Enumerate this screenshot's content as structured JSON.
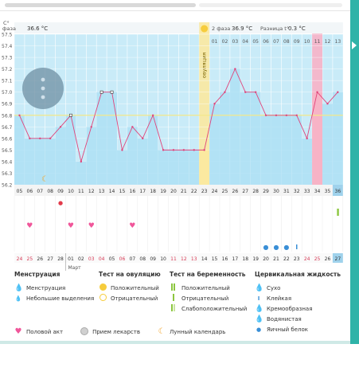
{
  "chart_data": {
    "type": "line",
    "ylabel": "C°",
    "y_ticks": [
      "57.5",
      "57.4",
      "57.3",
      "57.2",
      "57.1",
      "57.0",
      "56.9",
      "56.8",
      "56.7",
      "56.6",
      "56.5",
      "56.4",
      "56.3",
      "56.2"
    ],
    "ylim": [
      56.2,
      57.5
    ],
    "phase1_label": "фаза",
    "phase1_value": "36.6 °C",
    "phase2_label": "2 фаза",
    "phase2_value": "36.9 °C",
    "diff_label": "Разница t°",
    "diff_value": "0.3 °C",
    "ovulation_label": "овуляция",
    "cycle_days_top": [
      "01",
      "02",
      "03",
      "04",
      "05",
      "06",
      "07",
      "08",
      "09",
      "10",
      "11",
      "12",
      "13"
    ],
    "dates": [
      "05",
      "06",
      "07",
      "08",
      "09",
      "10",
      "11",
      "12",
      "13",
      "14",
      "15",
      "16",
      "17",
      "18",
      "19",
      "20",
      "21",
      "22",
      "23",
      "24",
      "25",
      "26",
      "27",
      "28",
      "29",
      "30",
      "31",
      "32",
      "33",
      "34",
      "35",
      "36"
    ],
    "temps": [
      56.8,
      56.6,
      56.6,
      56.6,
      56.7,
      56.8,
      56.4,
      56.7,
      57.0,
      57.0,
      56.5,
      56.7,
      56.6,
      56.8,
      56.5,
      56.5,
      56.5,
      56.5,
      56.5,
      56.9,
      57.0,
      57.2,
      57.0,
      57.0,
      56.8,
      56.8,
      56.8,
      56.8,
      56.6,
      57.0,
      56.9,
      57.0
    ],
    "coverline": 56.8,
    "cycle_days_bottom": [
      "24",
      "25",
      "26",
      "27",
      "28",
      "01",
      "02",
      "03",
      "04",
      "05",
      "06",
      "07",
      "08",
      "09",
      "10",
      "11",
      "12",
      "13",
      "14",
      "15",
      "16",
      "17",
      "18",
      "19",
      "20",
      "21",
      "22",
      "23",
      "24",
      "25",
      "26",
      "27"
    ],
    "month_label": "Март"
  },
  "legend": {
    "menstruation": {
      "title": "Менструация",
      "items": [
        "Менструация",
        "Небольшие выделения"
      ]
    },
    "ovulation_test": {
      "title": "Тест на овуляцию",
      "items": [
        "Положительный",
        "Отрицательный"
      ]
    },
    "pregnancy_test": {
      "title": "Тест на беременность",
      "items": [
        "Положительный",
        "Отрицательный",
        "Слабоположительный"
      ]
    },
    "cervical": {
      "title": "Цервикальная жидкость",
      "items": [
        "Сухо",
        "Клейкая",
        "Кремообразная",
        "Водянистая",
        "Яичный белок"
      ]
    },
    "other": [
      "Половой акт",
      "Прием лекарств",
      "Лунный календарь"
    ]
  },
  "colors": {
    "plot_bg": "#aee0f5",
    "line": "#e0457b",
    "ovulation": "#fbe9a0",
    "accent": "#2fb3a8",
    "pink": "#f7b3c6"
  }
}
